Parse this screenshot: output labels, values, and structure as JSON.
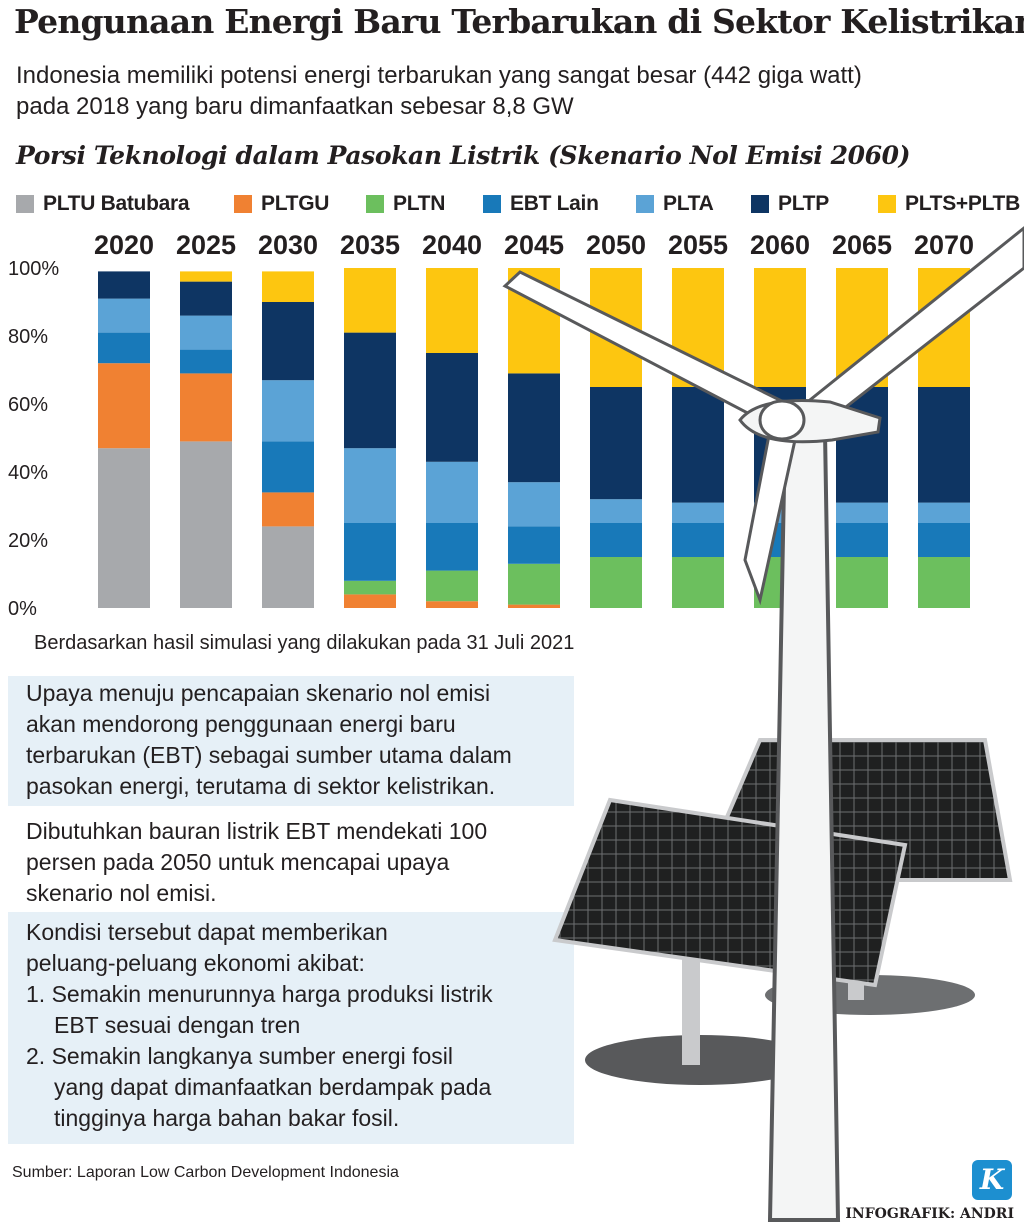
{
  "header": {
    "title": "Pengunaan Energi Baru Terbarukan di Sektor Kelistrikan",
    "subtitle_lines": [
      "Indonesia memiliki potensi energi terbarukan yang sangat besar (442 giga watt)",
      "pada 2018 yang baru dimanfaatkan sebesar 8,8 GW"
    ]
  },
  "colors": {
    "PLTU Batubara": "#a7a9ac",
    "PLTGU": "#f08132",
    "PLTN": "#6cbf5e",
    "EBT Lain": "#1879b9",
    "PLTA": "#5ba3d6",
    "PLTP": "#0e3563",
    "PLTS+PLTB": "#fdc610"
  },
  "chart_data": {
    "type": "bar",
    "stacked": true,
    "title": "Porsi Teknologi dalam Pasokan Listrik (Skenario Nol Emisi 2060)",
    "categories": [
      "2020",
      "2025",
      "2030",
      "2035",
      "2040",
      "2045",
      "2050",
      "2055",
      "2060",
      "2065",
      "2070"
    ],
    "y_ticks": [
      "0%",
      "20%",
      "40%",
      "60%",
      "80%",
      "100%"
    ],
    "ylim": [
      0,
      100
    ],
    "series": [
      {
        "name": "PLTU Batubara",
        "values": [
          47,
          49,
          24,
          0,
          0,
          0,
          0,
          0,
          0,
          0,
          0
        ]
      },
      {
        "name": "PLTGU",
        "values": [
          25,
          20,
          10,
          4,
          2,
          1,
          0,
          0,
          0,
          0,
          0
        ]
      },
      {
        "name": "PLTN",
        "values": [
          0,
          0,
          0,
          4,
          9,
          12,
          15,
          15,
          15,
          15,
          15
        ]
      },
      {
        "name": "EBT Lain",
        "values": [
          9,
          7,
          15,
          17,
          14,
          11,
          10,
          10,
          10,
          10,
          10
        ]
      },
      {
        "name": "PLTA",
        "values": [
          10,
          10,
          18,
          22,
          18,
          13,
          7,
          6,
          6,
          6,
          6
        ]
      },
      {
        "name": "PLTP",
        "values": [
          8,
          10,
          23,
          34,
          32,
          32,
          33,
          34,
          34,
          34,
          34
        ]
      },
      {
        "name": "PLTS+PLTB",
        "values": [
          0,
          3,
          9,
          19,
          25,
          31,
          35,
          35,
          35,
          35,
          35
        ]
      }
    ],
    "note": "Berdasarkan hasil simulasi yang dilakukan pada 31 Juli 2021"
  },
  "panels": {
    "p1_lines": [
      "Upaya menuju pencapaian skenario nol emisi",
      "akan mendorong penggunaan energi baru",
      "terbarukan (EBT) sebagai sumber utama dalam",
      "pasokan energi, terutama di sektor kelistrikan."
    ],
    "p2_lines": [
      "Dibutuhkan bauran listrik EBT mendekati 100",
      "persen pada 2050 untuk mencapai upaya",
      "skenario nol emisi."
    ],
    "p3_lines": [
      "Kondisi tersebut dapat memberikan",
      "peluang-peluang ekonomi akibat:",
      "1. Semakin menurunnya harga produksi listrik",
      "EBT sesuai dengan tren",
      "2. Semakin langkanya sumber energi fosil",
      "yang dapat dimanfaatkan berdampak pada",
      "tingginya harga bahan bakar fosil."
    ]
  },
  "footer": {
    "source": "Sumber: Laporan Low Carbon Development Indonesia",
    "credit": "INFOGRAFIK: ANDRI",
    "logo_letter": "K"
  }
}
